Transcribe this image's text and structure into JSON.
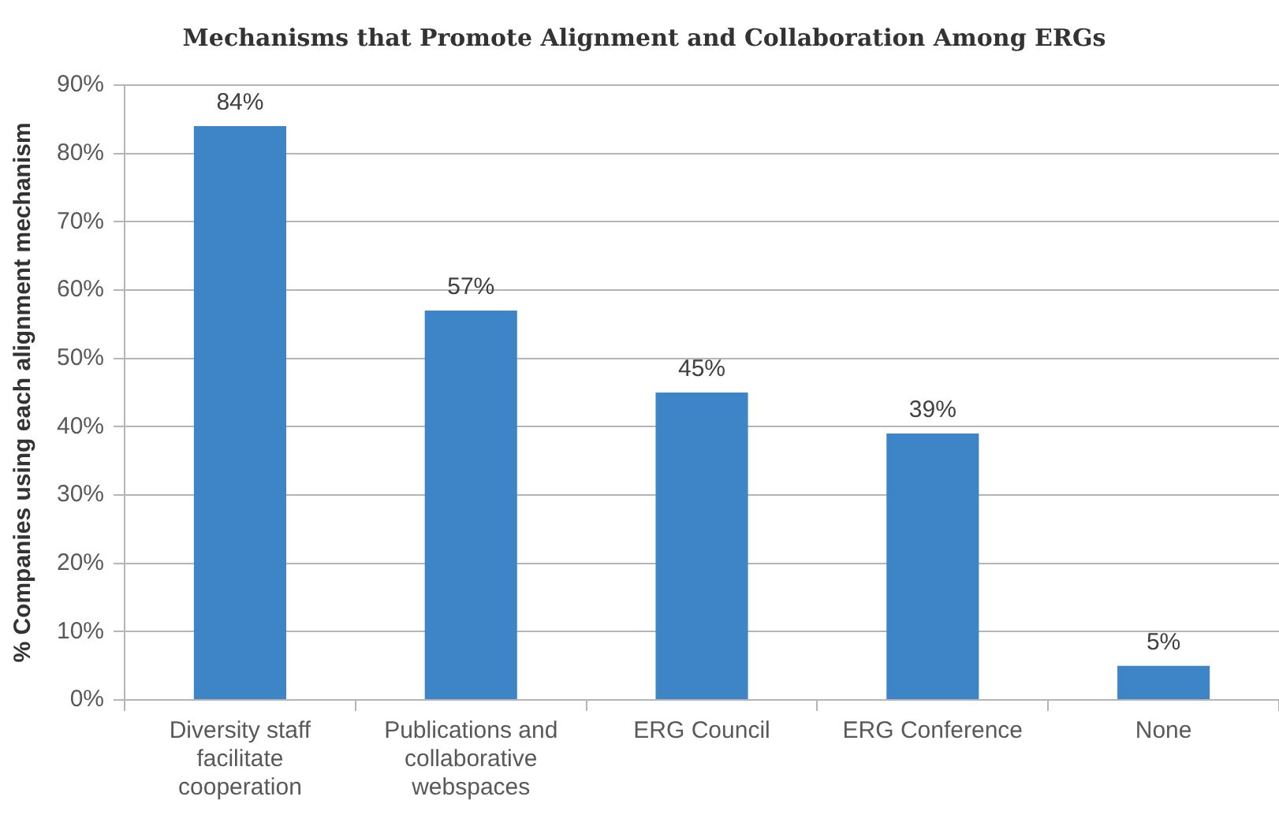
{
  "chart_data": {
    "type": "bar",
    "title": "Mechanisms that Promote Alignment and Collaboration Among ERGs",
    "ylabel": "% Companies using each alignment mechanism",
    "categories": [
      "Diversity staff facilitate cooperation",
      "Publications and collaborative webspaces",
      "ERG Council",
      "ERG Conference",
      "None"
    ],
    "values": [
      84,
      57,
      45,
      39,
      5
    ],
    "value_labels": [
      "84%",
      "57%",
      "45%",
      "39%",
      "5%"
    ],
    "color": "#3d85c6",
    "ylim": [
      0,
      90
    ],
    "yticks": [
      {
        "value": 0,
        "label": "0%"
      },
      {
        "value": 10,
        "label": "10%"
      },
      {
        "value": 20,
        "label": "20%"
      },
      {
        "value": 30,
        "label": "30%"
      },
      {
        "value": 40,
        "label": "40%"
      },
      {
        "value": 50,
        "label": "50%"
      },
      {
        "value": 60,
        "label": "60%"
      },
      {
        "value": 70,
        "label": "70%"
      },
      {
        "value": 80,
        "label": "80%"
      },
      {
        "value": 90,
        "label": "90%"
      }
    ],
    "grid": "y"
  }
}
